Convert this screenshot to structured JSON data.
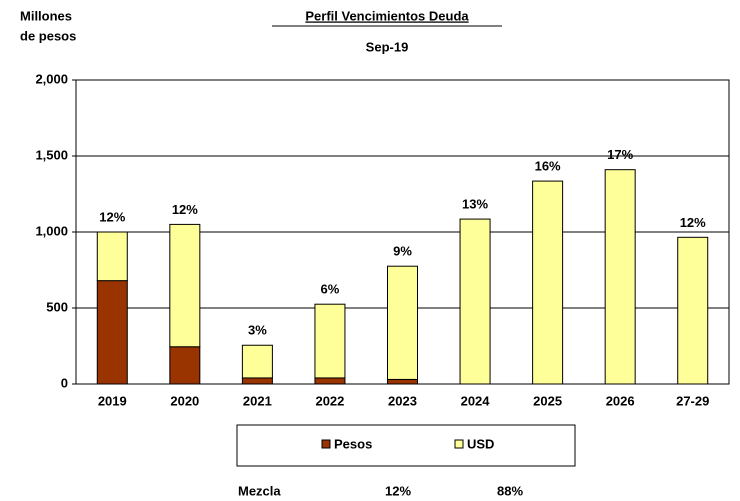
{
  "chart_data": {
    "type": "stacked_bar",
    "title": "Perfil Vencimientos Deuda",
    "subtitle": "Sep-19",
    "y_label": [
      "Millones",
      "de pesos"
    ],
    "categories": [
      "2019",
      "2020",
      "2021",
      "2022",
      "2023",
      "2024",
      "2025",
      "2026",
      "27-29"
    ],
    "series": [
      {
        "name": "Pesos",
        "color": "#993300",
        "values": [
          680,
          245,
          40,
          40,
          30,
          0,
          0,
          0,
          0
        ]
      },
      {
        "name": "USD",
        "color": "#ffff99",
        "values": [
          320,
          805,
          215,
          485,
          745,
          1085,
          1335,
          1410,
          965
        ]
      }
    ],
    "bar_labels": [
      "12%",
      "12%",
      "3%",
      "6%",
      "9%",
      "13%",
      "16%",
      "17%",
      "12%"
    ],
    "ylim": [
      0,
      2000
    ],
    "yticks": [
      0,
      500,
      {
        "value": 1000,
        "label": "1,000"
      },
      {
        "value": 1500,
        "label": "1,500"
      },
      {
        "value": 2000,
        "label": "2,000"
      }
    ],
    "grid": true,
    "footer": [
      "Mezcla",
      "12%",
      "88%"
    ]
  }
}
